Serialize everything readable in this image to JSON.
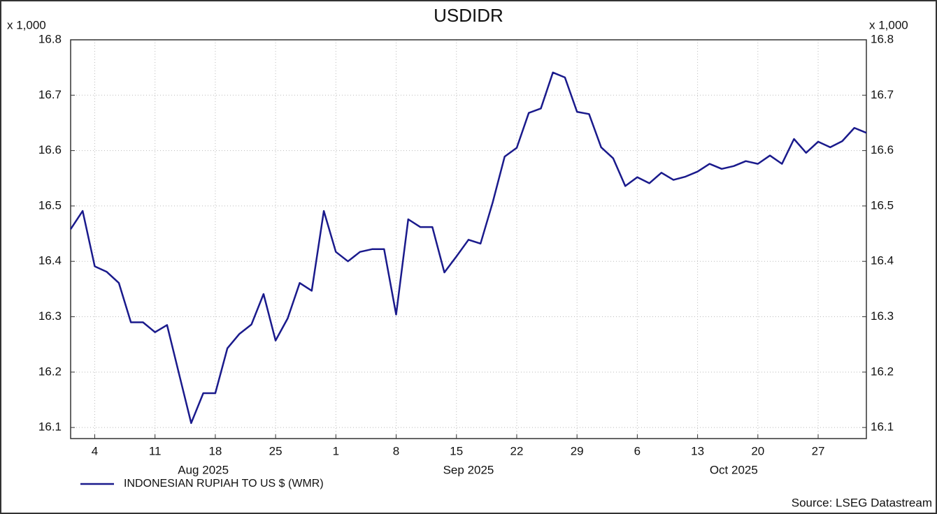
{
  "chart_data": {
    "type": "line",
    "title": "USDIDR",
    "y_unit": "x 1,000",
    "x": [
      "2025-07-31",
      "2025-08-01",
      "2025-08-04",
      "2025-08-05",
      "2025-08-06",
      "2025-08-07",
      "2025-08-08",
      "2025-08-11",
      "2025-08-12",
      "2025-08-13",
      "2025-08-14",
      "2025-08-15",
      "2025-08-18",
      "2025-08-19",
      "2025-08-20",
      "2025-08-21",
      "2025-08-22",
      "2025-08-25",
      "2025-08-26",
      "2025-08-27",
      "2025-08-28",
      "2025-08-29",
      "2025-09-01",
      "2025-09-02",
      "2025-09-03",
      "2025-09-04",
      "2025-09-05",
      "2025-09-08",
      "2025-09-09",
      "2025-09-10",
      "2025-09-11",
      "2025-09-12",
      "2025-09-15",
      "2025-09-16",
      "2025-09-17",
      "2025-09-18",
      "2025-09-19",
      "2025-09-22",
      "2025-09-23",
      "2025-09-24",
      "2025-09-25",
      "2025-09-26",
      "2025-09-29",
      "2025-09-30",
      "2025-10-01",
      "2025-10-02",
      "2025-10-03",
      "2025-10-06",
      "2025-10-07",
      "2025-10-08",
      "2025-10-09",
      "2025-10-10",
      "2025-10-13",
      "2025-10-14",
      "2025-10-15",
      "2025-10-16",
      "2025-10-17",
      "2025-10-20",
      "2025-10-21",
      "2025-10-22",
      "2025-10-23",
      "2025-10-24",
      "2025-10-27",
      "2025-10-28",
      "2025-10-29",
      "2025-10-30",
      "2025-10-31"
    ],
    "series": [
      {
        "name": "INDONESIAN RUPIAH TO US $ (WMR)",
        "color": "#1a1a8c",
        "values": [
          16.458,
          16.491,
          16.391,
          16.381,
          16.361,
          16.29,
          16.29,
          16.272,
          16.285,
          16.196,
          16.108,
          16.162,
          16.162,
          16.243,
          16.269,
          16.286,
          16.341,
          16.257,
          16.297,
          16.361,
          16.347,
          16.491,
          16.417,
          16.4,
          16.417,
          16.422,
          16.422,
          16.304,
          16.476,
          16.462,
          16.462,
          16.38,
          16.409,
          16.439,
          16.432,
          16.506,
          16.589,
          16.605,
          16.668,
          16.676,
          16.741,
          16.732,
          16.67,
          16.666,
          16.606,
          16.586,
          16.536,
          16.552,
          16.541,
          16.56,
          16.547,
          16.553,
          16.562,
          16.576,
          16.567,
          16.572,
          16.581,
          16.576,
          16.591,
          16.576,
          16.621,
          16.596,
          16.616,
          16.606,
          16.617,
          16.641,
          16.632
        ]
      }
    ],
    "ylim": [
      16.08,
      16.8
    ],
    "yticks": [
      16.1,
      16.2,
      16.3,
      16.4,
      16.5,
      16.6,
      16.7,
      16.8
    ],
    "xticks": [
      {
        "value": "2025-08-04",
        "label": "4"
      },
      {
        "value": "2025-08-11",
        "label": "11"
      },
      {
        "value": "2025-08-18",
        "label": "18"
      },
      {
        "value": "2025-08-25",
        "label": "25"
      },
      {
        "value": "2025-09-01",
        "label": "1"
      },
      {
        "value": "2025-09-08",
        "label": "8"
      },
      {
        "value": "2025-09-15",
        "label": "15"
      },
      {
        "value": "2025-09-22",
        "label": "22"
      },
      {
        "value": "2025-09-29",
        "label": "29"
      },
      {
        "value": "2025-10-06",
        "label": "6"
      },
      {
        "value": "2025-10-13",
        "label": "13"
      },
      {
        "value": "2025-10-20",
        "label": "20"
      },
      {
        "value": "2025-10-27",
        "label": "27"
      }
    ],
    "month_labels": [
      {
        "value": "2025-08-15",
        "label": "Aug 2025"
      },
      {
        "value": "2025-09-16",
        "label": "Sep 2025"
      },
      {
        "value": "2025-10-16",
        "label": "Oct 2025"
      }
    ],
    "grid": true,
    "source": "Source: LSEG Datastream"
  }
}
